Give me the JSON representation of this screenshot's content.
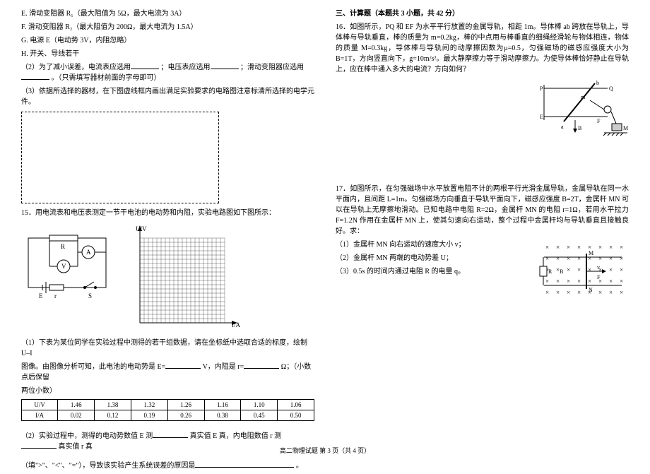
{
  "left": {
    "lines": {
      "e": "E. 滑动变阻器 R₁（最大阻值为 5Ω，最大电流为 3A）",
      "f": "F. 滑动变阻器 R₂（最大阻值为 200Ω，最大电流为 1.5A）",
      "g": "G. 电源 E（电动势 3V，内阻忽略）",
      "h": "H. 开关、导线若干",
      "q2a": "（2）为了减小误差，电流表应选用",
      "q2b": "；电压表应选用",
      "q2c": "；滑动变阻器应选用",
      "q2d": "。（只需填写器材前面的字母即可）",
      "q3": "（3）依据所选择的器材，在下图虚线框内画出满足实验要求的电路图注意标清所选择的电学元件。"
    },
    "q15": {
      "title": "15．用电流表和电压表测定一节干电池的电动势和内阻，实验电路图如下图所示：",
      "circuit": {
        "R": "R",
        "A": "A",
        "V": "V",
        "E": "E",
        "r": "r",
        "S": "S"
      },
      "chart": {
        "ylabel": "U/V",
        "xlabel": "I/A",
        "grid_n": 20,
        "cell": 6,
        "stroke": "#000000",
        "fill": "#ffffff"
      },
      "p1a": "（1）下表为某位同学在实验过程中测得的若干组数据，请在坐标纸中选取合适的标度，绘制 U–I",
      "p1b": "图像。由图像分析可知，此电池的电动势是 E=",
      "p1c": "V，内阻是 r=",
      "p1d": "Ω；（小数点后保留",
      "p1e": "两位小数）",
      "table": {
        "headers": [
          "U/V",
          "1.46",
          "1.38",
          "1.32",
          "1.26",
          "1.16",
          "1.10",
          "1.06"
        ],
        "row2": [
          "I/A",
          "0.02",
          "0.12",
          "0.19",
          "0.26",
          "0.38",
          "0.45",
          "0.50"
        ]
      },
      "p2a": "（2）实验过程中，测得的电动势数值 E 测",
      "p2b": "真实值 E 真，内电阻数值 r 测",
      "p2c": "真实值 r 真",
      "p3a": "（填\">\"、\"<\"、\"=\"），导致该实验产生系统误差的原因是",
      "p3b": "。"
    }
  },
  "right": {
    "section": "三、计算题（本题共 3 小题，共 42 分）",
    "q16": {
      "text1": "16．如图所示，PQ 和 EF 为水平平行放置的金属导轨，相距 1m。导体棒 ab 跨放在导轨上，导体棒与导轨垂直，棒的质量为 m=0.2kg，棒的中点用与棒垂直的细绳经滑轮与物体相连，物体的质量 M=0.3kg，导体棒与导轨间的动摩擦因数为μ=0.5，匀强磁场的磁感应强度大小为 B=1T，方向竖直向下，g=10m/s²。最大静摩擦力等于滑动摩擦力。为使导体棒恰好静止在导轨上，应在棒中通入多大的电流？方向如何？",
      "fig": {
        "P": "P",
        "Q": "Q",
        "E": "E",
        "F": "F",
        "a": "a",
        "b": "b",
        "B": "B",
        "m": "m",
        "M": "M"
      }
    },
    "q17": {
      "text1": "17．如图所示，在匀强磁场中水平放置电阻不计的两根平行光滑金属导轨，金属导轨在同一水平面内，且间距 L=1m。匀强磁场方向垂直于导轨平面向下，磁感应强度 B=2T，金属杆 MN 可以在导轨上无摩擦地滑动。已知电路中电阻 R=2Ω，金属杆 MN 的电阻 r=1Ω，若用水平拉力 F=1.2N 作用在金属杆 MN 上，使其匀速向右运动，整个过程中金属杆均与导轨垂直且接触良好。求：",
      "l1": "（1）金属杆 MN 向右运动的速度大小 v；",
      "l2": "（2）金属杆 MN 两端的电动势差 U；",
      "l3": "（3）0.5s 的时间内通过电阻 R 的电量 q。",
      "fig": {
        "M": "M",
        "N": "N",
        "R": "R",
        "B": "B",
        "F": "F",
        "v": "v"
      }
    }
  },
  "footer": "高二物理试题 第 3 页（共 4 页）"
}
